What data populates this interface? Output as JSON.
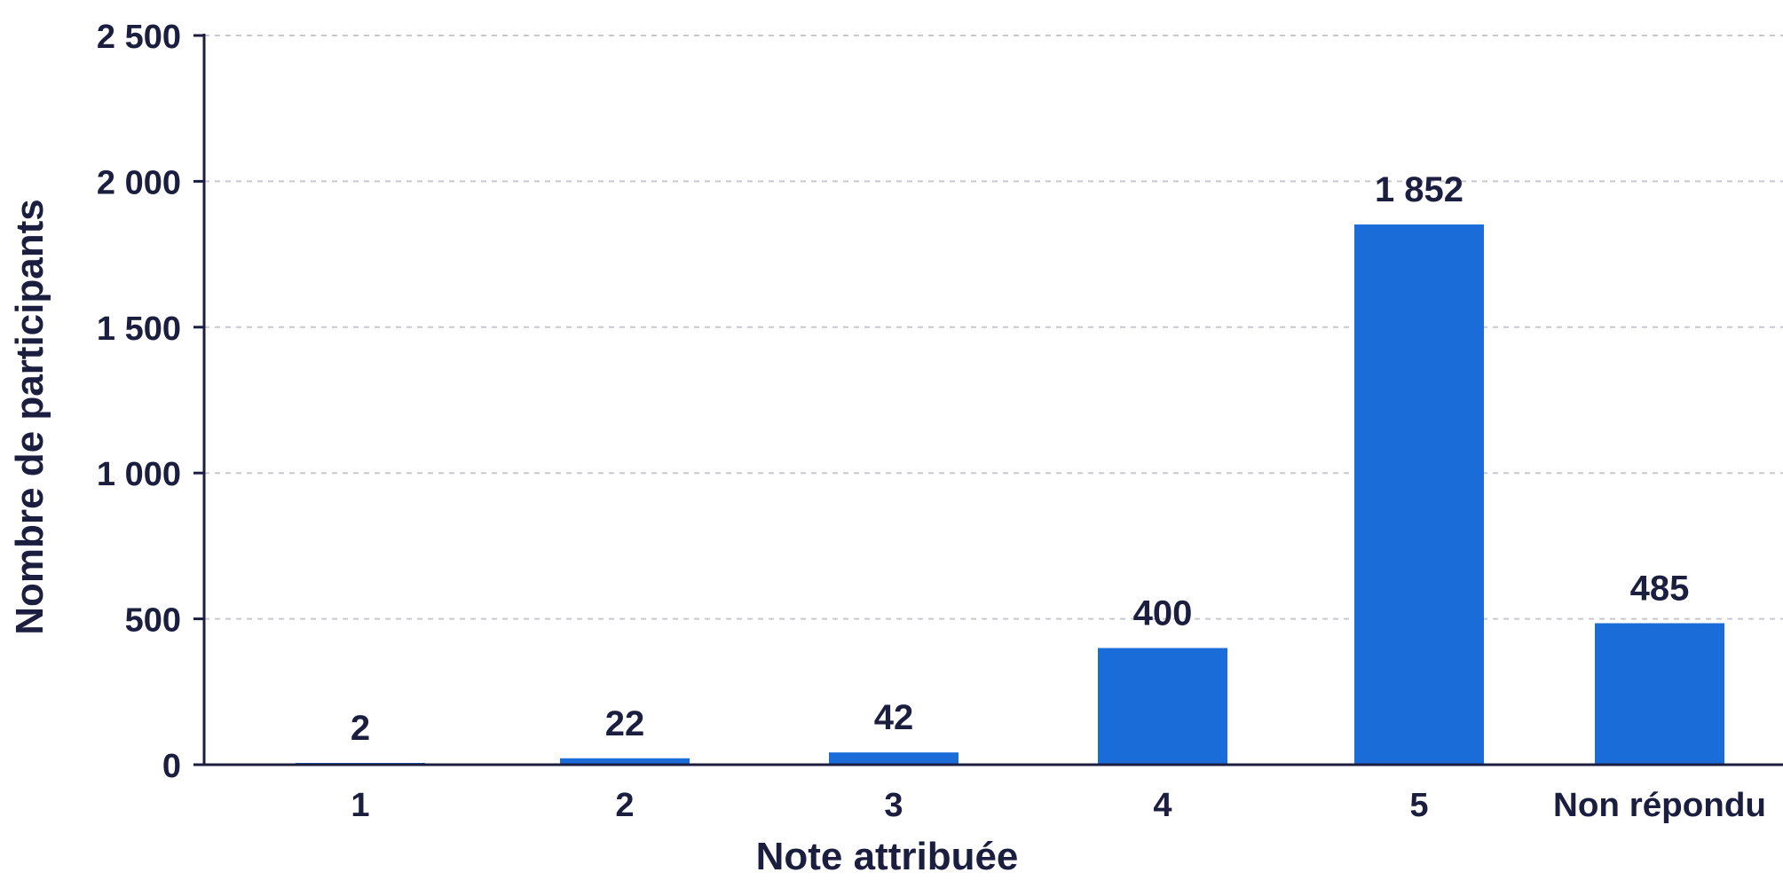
{
  "chart_data": {
    "type": "bar",
    "categories": [
      "1",
      "2",
      "3",
      "4",
      "5",
      "Non répondu"
    ],
    "values": [
      2,
      22,
      42,
      400,
      1852,
      485
    ],
    "value_labels": [
      "2",
      "22",
      "42",
      "400",
      "1 852",
      "485"
    ],
    "title": "",
    "xlabel": "Note attribuée",
    "ylabel": "Nombre de participants",
    "ylim": [
      0,
      2500
    ],
    "yticks": [
      0,
      500,
      1000,
      1500,
      2000,
      2500
    ],
    "ytick_labels": [
      "0",
      "500",
      "1 000",
      "1 500",
      "2 000",
      "2 500"
    ],
    "grid": "horizontal dashed",
    "legend": "none",
    "colors": {
      "bar": "#1a6cd9",
      "text": "#1c1e40",
      "axis": "#1c1e40",
      "grid": "#c8c8d0"
    }
  }
}
